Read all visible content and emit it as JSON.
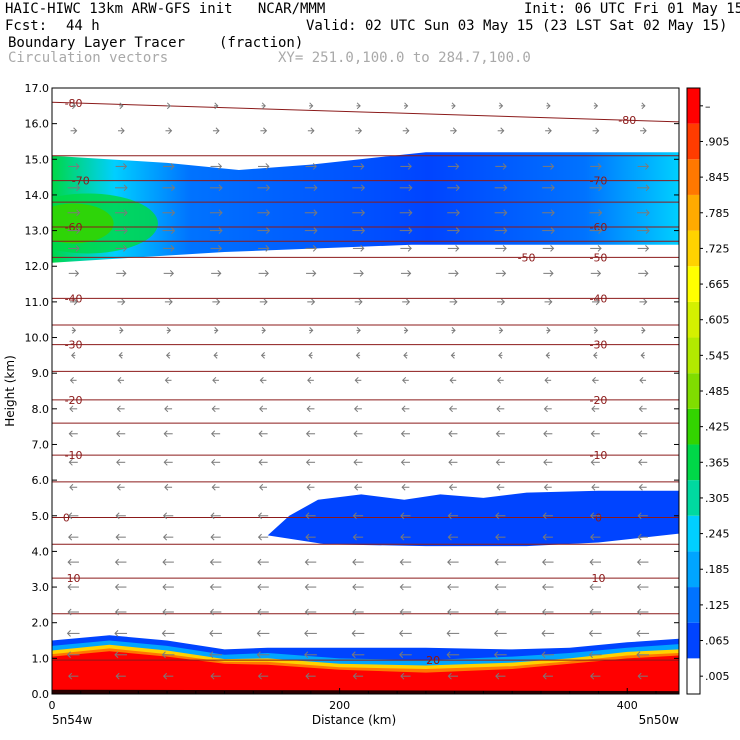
{
  "header": {
    "model_line": "HAIC-HIWC 13km ARW-GFS init   NCAR/MMM",
    "init_line": "Init: 06 UTC Fri 01 May 15",
    "fcst_label": "Fcst:",
    "fcst_value": "44 h",
    "valid_line": "Valid: 02 UTC Sun 03 May 15 (23 LST Sat 02 May 15)",
    "field1_name": "Boundary Layer Tracer",
    "field1_units": "(fraction)",
    "field2_name": "Circulation vectors",
    "xsec_line": "XY= 251.0,100.0 to 284.7,100.0"
  },
  "chart_data": {
    "type": "heatmap",
    "title": "Boundary Layer Tracer",
    "units": "(fraction)",
    "xlabel": "Distance (km)",
    "ylabel": "Height (km)",
    "xlim": [
      0,
      436
    ],
    "ylim": [
      0,
      17
    ],
    "x_ticks": [
      0,
      200,
      400
    ],
    "y_ticks": [
      0.0,
      1.0,
      2.0,
      3.0,
      4.0,
      5.0,
      6.0,
      7.0,
      8.0,
      9.0,
      10.0,
      11.0,
      12.0,
      13.0,
      14.0,
      15.0,
      16.0,
      17.0
    ],
    "x_end_labels": {
      "left": "5n54w",
      "right": "5n50w"
    },
    "colorbar": {
      "levels": [
        ".005",
        ".065",
        ".125",
        ".185",
        ".245",
        ".305",
        ".365",
        ".425",
        ".485",
        ".545",
        ".605",
        ".665",
        ".725",
        ".785",
        ".845",
        ".905",
        "–"
      ],
      "colors": [
        "#ffffff",
        "#0044ff",
        "#0073ff",
        "#00a5ff",
        "#00cfff",
        "#00d9a0",
        "#00d848",
        "#33d400",
        "#80dd00",
        "#b2ea00",
        "#d4f000",
        "#ffff00",
        "#ffd200",
        "#ffaa00",
        "#ff7800",
        "#ff3c00",
        "#ff0000"
      ]
    },
    "tracer_regions": [
      {
        "name": "upper layer",
        "base_km": 12.1,
        "top_km": 15.2,
        "max_value": 0.4
      },
      {
        "name": "mid layer",
        "base_km": 4.1,
        "top_km": 5.6,
        "x_start_km": 150,
        "max_value": 0.07
      },
      {
        "name": "boundary layer",
        "base_km": 0.0,
        "top_km": 1.5,
        "max_value": 1.0
      }
    ],
    "contours": {
      "quantity": "temperature",
      "line_color": "#8b1a1a",
      "levels": [
        {
          "label": "-80",
          "y_left": 16.6,
          "y_right": 16.05,
          "label_x": [
            15,
            400
          ]
        },
        {
          "label": "-70",
          "y_left": 14.4,
          "y_right": 14.4,
          "label_x": [
            20,
            380
          ]
        },
        {
          "label": "-60",
          "y_left": 13.1,
          "y_right": 13.1,
          "label_x": [
            15,
            380
          ]
        },
        {
          "label": "-50",
          "y_left": 12.25,
          "y_right": 12.25,
          "label_x": [
            330,
            380
          ]
        },
        {
          "label": "-40",
          "y_left": 11.1,
          "y_right": 11.1,
          "label_x": [
            15,
            380
          ]
        },
        {
          "label": "-30",
          "y_left": 9.8,
          "y_right": 9.8,
          "label_x": [
            15,
            380
          ]
        },
        {
          "label": "-20",
          "y_left": 8.25,
          "y_right": 8.25,
          "label_x": [
            15,
            380
          ]
        },
        {
          "label": "-10",
          "y_left": 6.7,
          "y_right": 6.7,
          "label_x": [
            15,
            380
          ]
        },
        {
          "label": "0",
          "y_left": 4.95,
          "y_right": 4.95,
          "label_x": [
            10,
            380
          ]
        },
        {
          "label": "10",
          "y_left": 3.25,
          "y_right": 3.25,
          "label_x": [
            15,
            380
          ]
        },
        {
          "label": "20",
          "y_left": 0.95,
          "y_right": 0.95,
          "label_x": [
            265,
            265
          ]
        }
      ],
      "unlabeled_km": [
        15.1,
        13.8,
        12.7,
        10.35,
        9.05,
        7.6,
        5.95,
        4.2,
        2.25
      ]
    },
    "vectors": {
      "description": "Circulation vectors",
      "rows": [
        {
          "y_km": 16.5,
          "u": 0.3
        },
        {
          "y_km": 15.8,
          "u": 0.5
        },
        {
          "y_km": 14.8,
          "u": 0.9
        },
        {
          "y_km": 14.2,
          "u": 1.0
        },
        {
          "y_km": 13.5,
          "u": 1.0
        },
        {
          "y_km": 13.0,
          "u": 1.0
        },
        {
          "y_km": 12.5,
          "u": 0.9
        },
        {
          "y_km": 11.8,
          "u": 0.8
        },
        {
          "y_km": 11.0,
          "u": 0.6
        },
        {
          "y_km": 10.2,
          "u": 0.3
        },
        {
          "y_km": 9.5,
          "u": -0.3
        },
        {
          "y_km": 8.8,
          "u": -0.5
        },
        {
          "y_km": 8.0,
          "u": -0.6
        },
        {
          "y_km": 7.3,
          "u": -0.7
        },
        {
          "y_km": 6.5,
          "u": -0.7
        },
        {
          "y_km": 5.8,
          "u": -0.6
        },
        {
          "y_km": 5.0,
          "u": -0.8
        },
        {
          "y_km": 4.4,
          "u": -0.8
        },
        {
          "y_km": 3.7,
          "u": -0.9
        },
        {
          "y_km": 3.0,
          "u": -0.9
        },
        {
          "y_km": 2.3,
          "u": -0.9
        },
        {
          "y_km": 1.7,
          "u": -1.0
        },
        {
          "y_km": 1.1,
          "u": -1.0
        },
        {
          "y_km": 0.5,
          "u": -0.8
        }
      ],
      "x_km": [
        15,
        48,
        81,
        114,
        147,
        180,
        213,
        246,
        279,
        312,
        345,
        378,
        411
      ]
    }
  }
}
